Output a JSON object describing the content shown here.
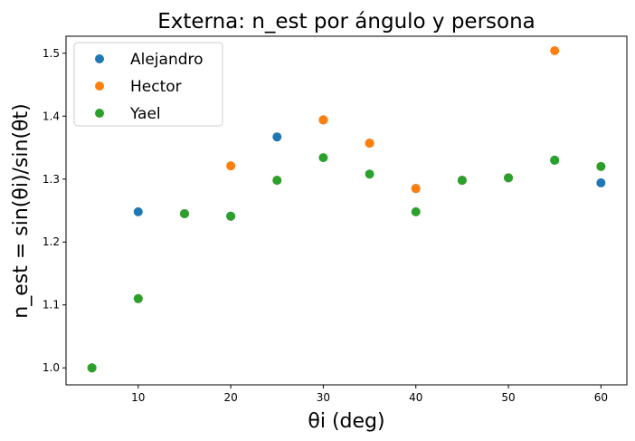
{
  "chart_data": {
    "type": "scatter",
    "title": "Externa: n_est por ángulo y persona",
    "xlabel": "θi (deg)",
    "ylabel": "n_est = sin(θi)/sin(θt)",
    "xlim": [
      2.2,
      62.8
    ],
    "ylim": [
      0.973,
      1.527
    ],
    "xticks": [
      10,
      20,
      30,
      40,
      50,
      60
    ],
    "yticks": [
      1.0,
      1.1,
      1.2,
      1.3,
      1.4,
      1.5
    ],
    "xtick_labels": [
      "10",
      "20",
      "30",
      "40",
      "50",
      "60"
    ],
    "ytick_labels": [
      "1.0",
      "1.1",
      "1.2",
      "1.3",
      "1.4",
      "1.5"
    ],
    "grid": false,
    "legend_position": "top-left",
    "series": [
      {
        "name": "Alejandro",
        "color": "#1f77b4",
        "x": [
          5,
          10,
          15,
          20,
          25,
          30,
          35,
          40,
          45,
          50,
          55,
          60
        ],
        "y": [
          1.0,
          1.248,
          1.245,
          1.241,
          1.367,
          1.394,
          1.357,
          1.285,
          1.298,
          1.302,
          1.33,
          1.294
        ]
      },
      {
        "name": "Hector",
        "color": "#ff7f0e",
        "x": [
          5,
          10,
          15,
          20,
          25,
          30,
          35,
          40,
          45,
          50,
          55,
          60
        ],
        "y": [
          1.0,
          1.11,
          1.245,
          1.321,
          1.298,
          1.394,
          1.357,
          1.285,
          1.298,
          1.302,
          1.504,
          1.32
        ]
      },
      {
        "name": "Yael",
        "color": "#2ca02c",
        "x": [
          5,
          10,
          15,
          20,
          25,
          30,
          35,
          40,
          45,
          50,
          55,
          60
        ],
        "y": [
          1.0,
          1.11,
          1.245,
          1.241,
          1.298,
          1.334,
          1.308,
          1.248,
          1.298,
          1.302,
          1.33,
          1.32
        ]
      }
    ]
  }
}
